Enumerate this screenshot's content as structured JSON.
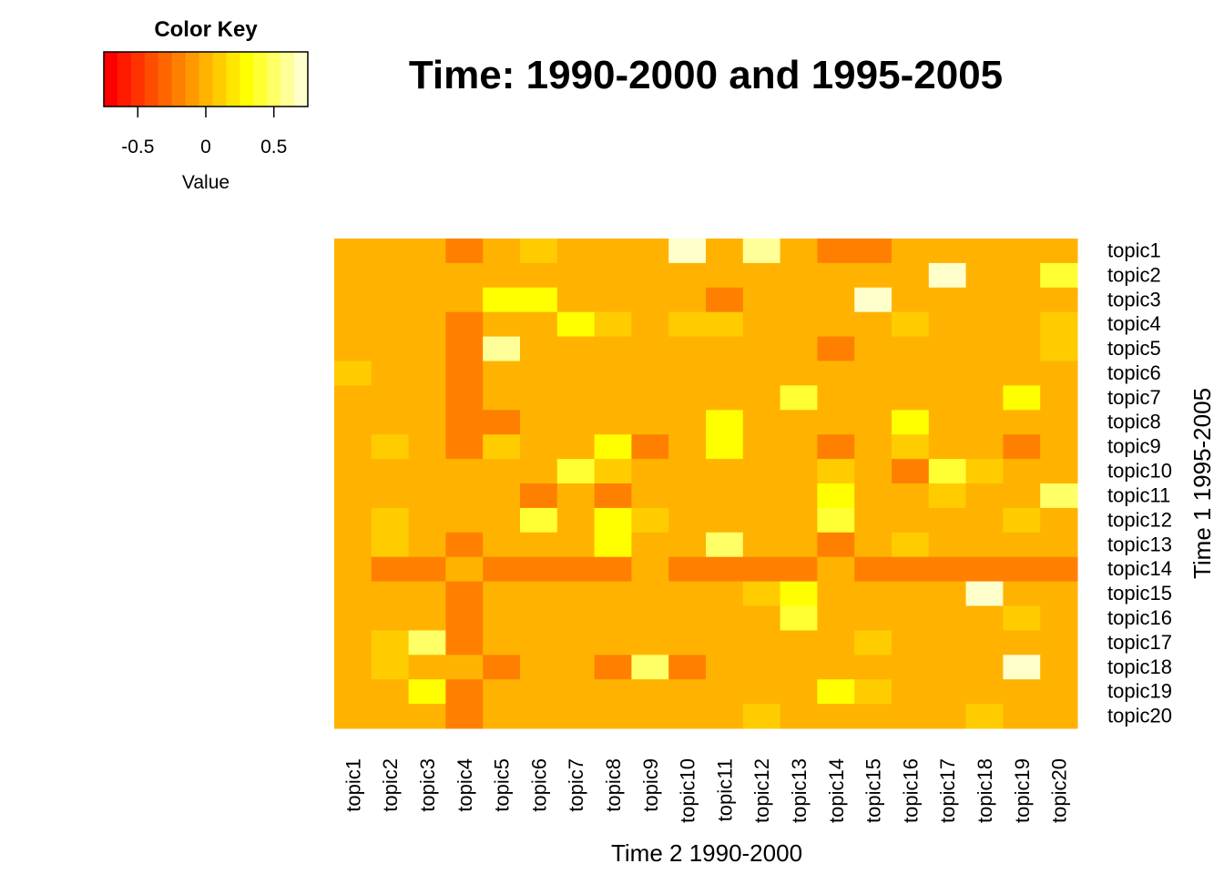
{
  "chart_data": {
    "type": "heatmap",
    "title": "Time: 1990-2000 and 1995-2005",
    "xlabel": "Time 2 1990-2000",
    "ylabel": "Time 1 1995-2005",
    "columns": [
      "topic1",
      "topic2",
      "topic3",
      "topic4",
      "topic5",
      "topic6",
      "topic7",
      "topic8",
      "topic9",
      "topic10",
      "topic11",
      "topic12",
      "topic13",
      "topic14",
      "topic15",
      "topic16",
      "topic17",
      "topic18",
      "topic19",
      "topic20"
    ],
    "rows": [
      "topic1",
      "topic2",
      "topic3",
      "topic4",
      "topic5",
      "topic6",
      "topic7",
      "topic8",
      "topic9",
      "topic10",
      "topic11",
      "topic12",
      "topic13",
      "topic14",
      "topic15",
      "topic16",
      "topic17",
      "topic18",
      "topic19",
      "topic20"
    ],
    "values": [
      [
        0.0,
        0.0,
        0.0,
        -0.15,
        0.0,
        0.1,
        0.0,
        0.0,
        0.0,
        0.75,
        0.0,
        0.65,
        0.0,
        -0.15,
        -0.15,
        0.0,
        0.0,
        0.0,
        0.0,
        0.0
      ],
      [
        0.0,
        0.0,
        0.0,
        0.0,
        0.0,
        0.0,
        0.0,
        0.0,
        0.0,
        0.0,
        0.0,
        0.0,
        0.0,
        0.0,
        0.0,
        0.0,
        0.75,
        0.0,
        0.0,
        0.4
      ],
      [
        0.0,
        0.0,
        0.0,
        0.0,
        0.3,
        0.3,
        0.0,
        0.0,
        0.0,
        0.0,
        -0.15,
        0.0,
        0.0,
        0.0,
        0.75,
        0.0,
        0.0,
        0.0,
        0.0,
        0.0
      ],
      [
        0.0,
        0.0,
        0.0,
        -0.15,
        0.0,
        0.0,
        0.3,
        0.1,
        0.0,
        0.1,
        0.1,
        0.0,
        0.0,
        0.0,
        0.0,
        0.1,
        0.0,
        0.0,
        0.0,
        0.1
      ],
      [
        0.0,
        0.0,
        0.0,
        -0.15,
        0.6,
        0.0,
        0.0,
        0.0,
        0.0,
        0.0,
        0.0,
        0.0,
        0.0,
        -0.15,
        0.0,
        0.0,
        0.0,
        0.0,
        0.0,
        0.1
      ],
      [
        0.1,
        0.0,
        0.0,
        -0.15,
        0.0,
        0.0,
        0.0,
        0.0,
        0.0,
        0.0,
        0.0,
        0.0,
        0.0,
        0.0,
        0.0,
        0.0,
        0.0,
        0.0,
        0.0,
        0.0
      ],
      [
        0.0,
        0.0,
        0.0,
        -0.15,
        0.0,
        0.0,
        0.0,
        0.0,
        0.0,
        0.0,
        0.0,
        0.0,
        0.4,
        0.0,
        0.0,
        0.0,
        0.0,
        0.0,
        0.3,
        0.0
      ],
      [
        0.0,
        0.0,
        0.0,
        -0.15,
        -0.15,
        0.0,
        0.0,
        0.0,
        0.0,
        0.0,
        0.3,
        0.0,
        0.0,
        0.0,
        0.0,
        0.3,
        0.0,
        0.0,
        0.0,
        0.0
      ],
      [
        0.0,
        0.1,
        0.0,
        -0.15,
        0.1,
        0.0,
        0.0,
        0.3,
        -0.15,
        0.0,
        0.3,
        0.0,
        0.0,
        -0.15,
        0.0,
        0.1,
        0.0,
        0.0,
        -0.15,
        0.0
      ],
      [
        0.0,
        0.0,
        0.0,
        0.0,
        0.0,
        0.0,
        0.4,
        0.1,
        0.0,
        0.0,
        0.0,
        0.0,
        0.0,
        0.1,
        0.0,
        -0.15,
        0.4,
        0.1,
        0.0,
        0.0
      ],
      [
        0.0,
        0.0,
        0.0,
        0.0,
        0.0,
        -0.15,
        0.0,
        -0.15,
        0.0,
        0.0,
        0.0,
        0.0,
        0.0,
        0.3,
        0.0,
        0.0,
        0.1,
        0.0,
        0.0,
        0.5
      ],
      [
        0.0,
        0.1,
        0.0,
        0.0,
        0.0,
        0.4,
        0.0,
        0.3,
        0.1,
        0.0,
        0.0,
        0.0,
        0.0,
        0.4,
        0.0,
        0.0,
        0.0,
        0.0,
        0.1,
        0.0
      ],
      [
        0.0,
        0.1,
        0.0,
        -0.15,
        0.0,
        0.0,
        0.0,
        0.3,
        0.0,
        0.0,
        0.5,
        0.0,
        0.0,
        -0.15,
        0.0,
        0.1,
        0.0,
        0.0,
        0.0,
        0.0
      ],
      [
        0.0,
        -0.15,
        -0.15,
        0.0,
        -0.15,
        -0.15,
        -0.15,
        -0.15,
        0.0,
        -0.15,
        -0.15,
        -0.15,
        -0.15,
        0.0,
        -0.15,
        -0.15,
        -0.15,
        -0.15,
        -0.15,
        -0.15
      ],
      [
        0.0,
        0.0,
        0.0,
        -0.15,
        0.0,
        0.0,
        0.0,
        0.0,
        0.0,
        0.0,
        0.0,
        0.1,
        0.3,
        0.0,
        0.0,
        0.0,
        0.0,
        0.75,
        0.0,
        0.0
      ],
      [
        0.0,
        0.0,
        0.0,
        -0.15,
        0.0,
        0.0,
        0.0,
        0.0,
        0.0,
        0.0,
        0.0,
        0.0,
        0.4,
        0.0,
        0.0,
        0.0,
        0.0,
        0.0,
        0.1,
        0.0
      ],
      [
        0.0,
        0.1,
        0.5,
        -0.15,
        0.0,
        0.0,
        0.0,
        0.0,
        0.0,
        0.0,
        0.0,
        0.0,
        0.0,
        0.0,
        0.1,
        0.0,
        0.0,
        0.0,
        0.0,
        0.0
      ],
      [
        0.0,
        0.1,
        0.0,
        0.0,
        -0.15,
        0.0,
        0.0,
        -0.15,
        0.5,
        -0.15,
        0.0,
        0.0,
        0.0,
        0.0,
        0.0,
        0.0,
        0.0,
        0.0,
        0.75,
        0.0
      ],
      [
        0.0,
        0.0,
        0.3,
        -0.15,
        0.0,
        0.0,
        0.0,
        0.0,
        0.0,
        0.0,
        0.0,
        0.0,
        0.0,
        0.3,
        0.1,
        0.0,
        0.0,
        0.0,
        0.0,
        0.0
      ],
      [
        0.0,
        0.0,
        0.0,
        -0.15,
        0.0,
        0.0,
        0.0,
        0.0,
        0.0,
        0.0,
        0.0,
        0.1,
        0.0,
        0.0,
        0.0,
        0.0,
        0.0,
        0.1,
        0.0,
        0.0
      ]
    ],
    "colorscale": {
      "range": [
        -0.75,
        0.75
      ],
      "colors": [
        "#FF0000",
        "#FF1A00",
        "#FF3300",
        "#FF4D00",
        "#FF6600",
        "#FF8000",
        "#FF9900",
        "#FFB300",
        "#FFCC00",
        "#FFE600",
        "#FFFF00",
        "#FFFF33",
        "#FFFF66",
        "#FFFF99",
        "#FFFFCC"
      ]
    },
    "key": {
      "title": "Color Key",
      "label": "Value",
      "ticks": [
        -0.5,
        0,
        0.5
      ],
      "tick_labels": [
        "-0.5",
        "0",
        "0.5"
      ]
    }
  }
}
